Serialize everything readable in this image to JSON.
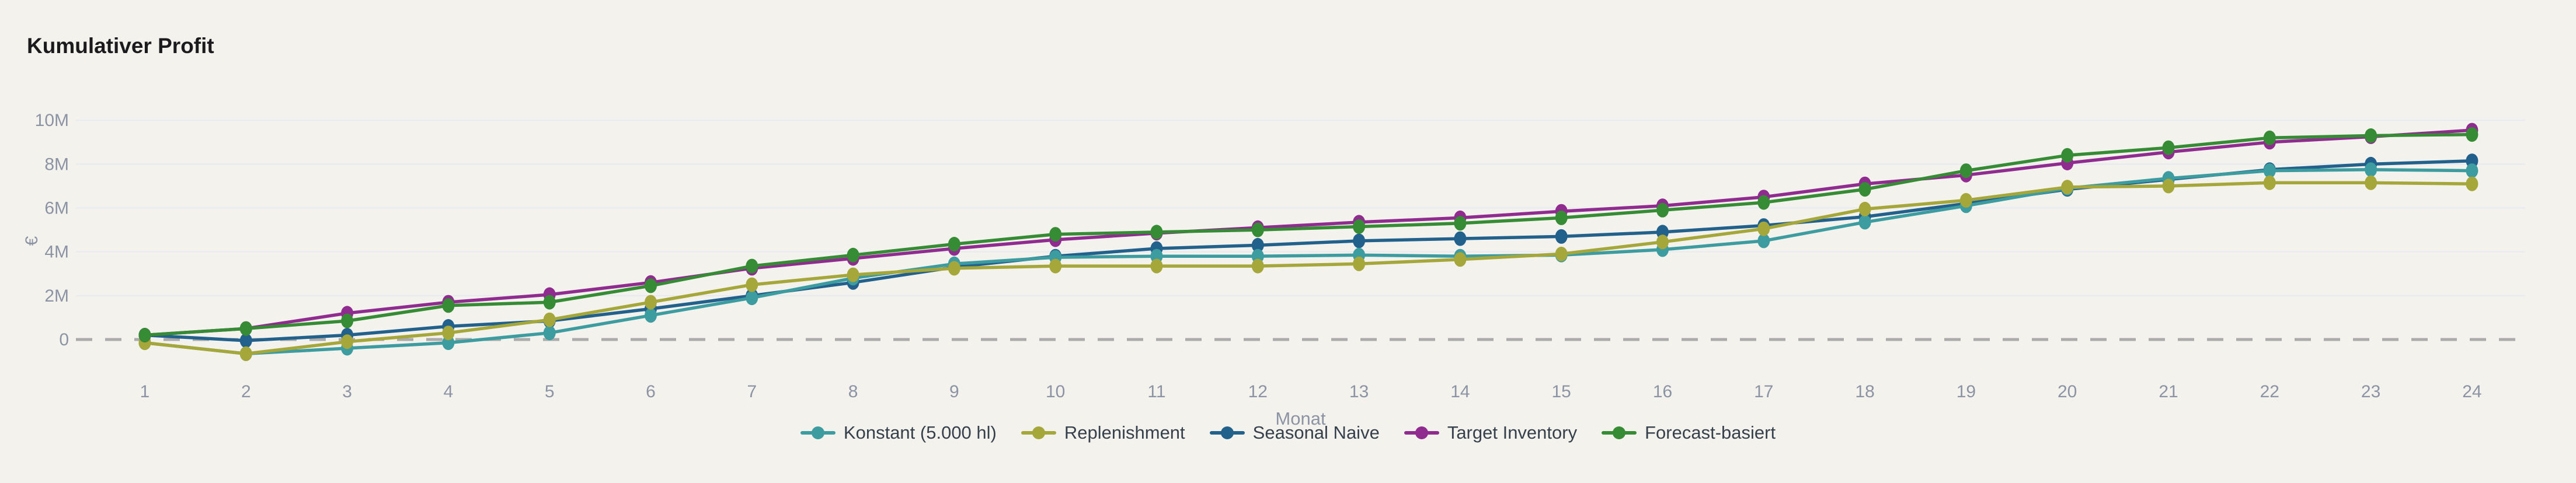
{
  "page": {
    "background": "#F4F2ED"
  },
  "chart_data": {
    "type": "line",
    "title": "Kumulativer Profit",
    "xlabel": "Monat",
    "ylabel": "€",
    "unit": "M€ (values in millions of euro)",
    "x": [
      1,
      2,
      3,
      4,
      5,
      6,
      7,
      8,
      9,
      10,
      11,
      12,
      13,
      14,
      15,
      16,
      17,
      18,
      19,
      20,
      21,
      22,
      23,
      24
    ],
    "y_ticks": [
      {
        "value": 0,
        "label": "0"
      },
      {
        "value": 2,
        "label": "2M"
      },
      {
        "value": 4,
        "label": "4M"
      },
      {
        "value": 6,
        "label": "6M"
      },
      {
        "value": 8,
        "label": "8M"
      },
      {
        "value": 10,
        "label": "10M"
      }
    ],
    "ylim": [
      -1.1,
      10.6
    ],
    "grid": true,
    "grid_color": "#E8EAF2",
    "zero_line": {
      "style": "dashed",
      "color": "#ABABAB"
    },
    "tick_color": "#8B93A4",
    "legend_position": "bottom-center",
    "series": [
      {
        "name": "Konstant (5.000 hl)",
        "color": "#3D9CA0",
        "values": [
          -0.15,
          -0.65,
          -0.4,
          -0.15,
          0.3,
          1.1,
          1.9,
          2.8,
          3.45,
          3.75,
          3.8,
          3.8,
          3.85,
          3.8,
          3.85,
          4.1,
          4.5,
          5.35,
          6.1,
          6.9,
          7.35,
          7.7,
          7.75,
          7.7
        ]
      },
      {
        "name": "Replenishment",
        "color": "#A6A73B",
        "values": [
          -0.15,
          -0.65,
          -0.1,
          0.3,
          0.9,
          1.7,
          2.5,
          2.95,
          3.25,
          3.35,
          3.35,
          3.35,
          3.45,
          3.65,
          3.9,
          4.45,
          5.05,
          5.95,
          6.35,
          6.95,
          7.0,
          7.15,
          7.15,
          7.1
        ]
      },
      {
        "name": "Seasonal Naive",
        "color": "#21618C",
        "values": [
          0.2,
          -0.05,
          0.2,
          0.6,
          0.85,
          1.4,
          2.0,
          2.6,
          3.3,
          3.8,
          4.15,
          4.3,
          4.5,
          4.6,
          4.7,
          4.9,
          5.2,
          5.6,
          6.2,
          6.85,
          7.3,
          7.75,
          8.0,
          8.15
        ]
      },
      {
        "name": "Target Inventory",
        "color": "#902B90",
        "values": [
          0.2,
          0.5,
          1.2,
          1.7,
          2.05,
          2.6,
          3.25,
          3.7,
          4.15,
          4.55,
          4.85,
          5.1,
          5.35,
          5.55,
          5.85,
          6.1,
          6.5,
          7.1,
          7.5,
          8.05,
          8.55,
          9.0,
          9.25,
          9.55
        ]
      },
      {
        "name": "Forecast-basiert",
        "color": "#368B35",
        "values": [
          0.2,
          0.5,
          0.85,
          1.55,
          1.7,
          2.45,
          3.35,
          3.85,
          4.35,
          4.8,
          4.9,
          5.0,
          5.15,
          5.3,
          5.55,
          5.9,
          6.25,
          6.85,
          7.7,
          8.4,
          8.75,
          9.2,
          9.3,
          9.35
        ]
      }
    ]
  }
}
